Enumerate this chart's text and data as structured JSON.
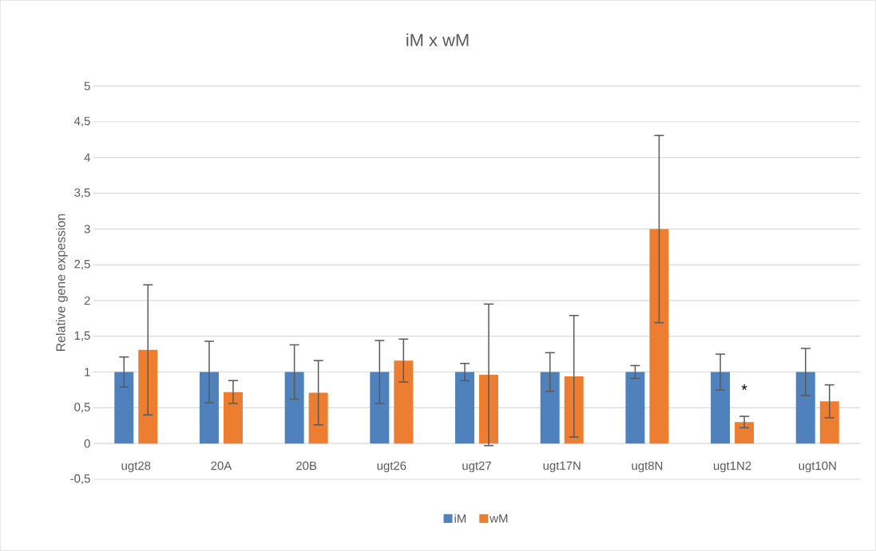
{
  "chart_data": {
    "type": "bar",
    "title": "iM x wM",
    "ylabel": "Relative gene expession",
    "categories": [
      "ugt28",
      "20A",
      "20B",
      "ugt26",
      "ugt27",
      "ugt17N",
      "ugt8N",
      "ugt1N2",
      "ugt10N"
    ],
    "series": [
      {
        "name": "iM",
        "color": "#4f81bd",
        "values": [
          1,
          1,
          1,
          1,
          1,
          1,
          1,
          1,
          1
        ],
        "errors": [
          0.21,
          0.43,
          0.38,
          0.44,
          0.12,
          0.27,
          0.09,
          0.25,
          0.33
        ]
      },
      {
        "name": "wM",
        "color": "#ed7d31",
        "values": [
          1.31,
          0.72,
          0.71,
          1.16,
          0.96,
          0.94,
          3.0,
          0.3,
          0.59
        ],
        "errors": [
          0.91,
          0.16,
          0.45,
          0.3,
          0.99,
          0.85,
          1.31,
          0.08,
          0.23
        ]
      }
    ],
    "ylim": [
      -0.5,
      5
    ],
    "yticks": [
      {
        "value": -0.5,
        "label": "-0,5"
      },
      0,
      {
        "value": 0.5,
        "label": "0,5"
      },
      1,
      {
        "value": 1.5,
        "label": "1,5"
      },
      2,
      {
        "value": 2.5,
        "label": "2,5"
      },
      3,
      {
        "value": 3.5,
        "label": "3,5"
      },
      4,
      {
        "value": 4.5,
        "label": "4,5"
      },
      5
    ],
    "grid": "y",
    "legend": "bottom",
    "annotations": [
      {
        "text": "*",
        "x": "ugt1N2",
        "y": 0.75
      }
    ]
  }
}
